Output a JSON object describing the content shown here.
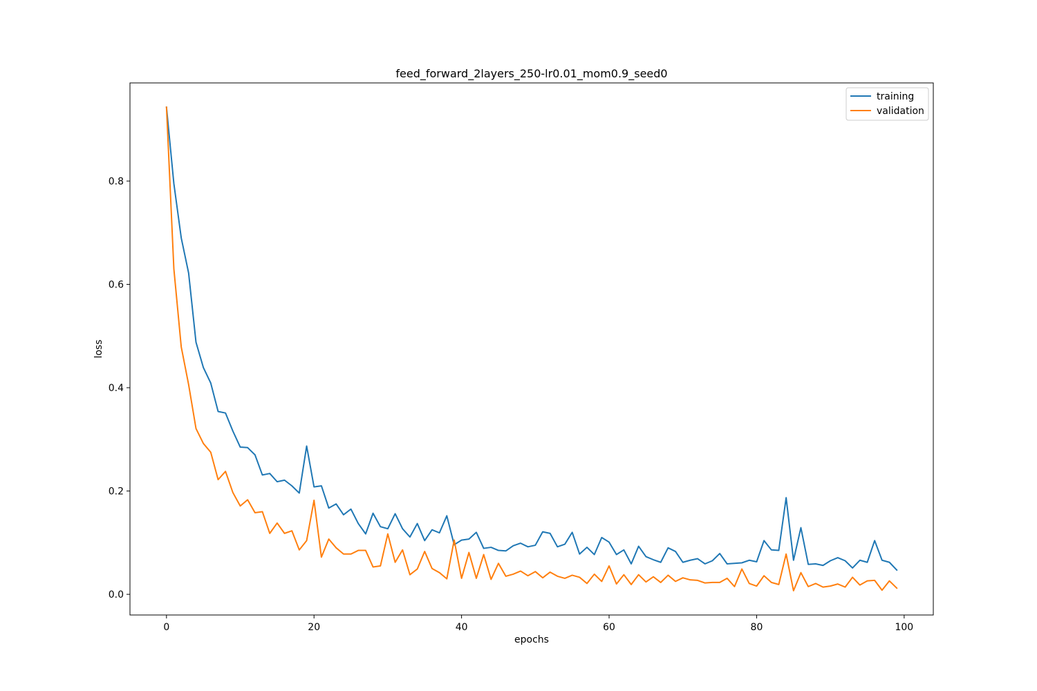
{
  "chart_data": {
    "type": "line",
    "title": "feed_forward_2layers_250-lr0.01_mom0.9_seed0",
    "xlabel": "epochs",
    "ylabel": "loss",
    "xlim": [
      -4.95,
      103.95
    ],
    "ylim": [
      -0.04,
      0.99
    ],
    "x_ticks": [
      0,
      20,
      40,
      60,
      80,
      100
    ],
    "y_ticks": [
      0.0,
      0.2,
      0.4,
      0.6,
      0.8
    ],
    "x_tick_labels": [
      "0",
      "20",
      "40",
      "60",
      "80",
      "100"
    ],
    "y_tick_labels": [
      "0.0",
      "0.2",
      "0.4",
      "0.6",
      "0.8"
    ],
    "grid": false,
    "legend_position": "top-right",
    "x": [
      0,
      1,
      2,
      3,
      4,
      5,
      6,
      7,
      8,
      9,
      10,
      11,
      12,
      13,
      14,
      15,
      16,
      17,
      18,
      19,
      20,
      21,
      22,
      23,
      24,
      25,
      26,
      27,
      28,
      29,
      30,
      31,
      32,
      33,
      34,
      35,
      36,
      37,
      38,
      39,
      40,
      41,
      42,
      43,
      44,
      45,
      46,
      47,
      48,
      49,
      50,
      51,
      52,
      53,
      54,
      55,
      56,
      57,
      58,
      59,
      60,
      61,
      62,
      63,
      64,
      65,
      66,
      67,
      68,
      69,
      70,
      71,
      72,
      73,
      74,
      75,
      76,
      77,
      78,
      79,
      80,
      81,
      82,
      83,
      84,
      85,
      86,
      87,
      88,
      89,
      90,
      91,
      92,
      93,
      94,
      95,
      96,
      97,
      98,
      99
    ],
    "series": [
      {
        "name": "training",
        "color": "#1f77b4",
        "values": [
          0.943,
          0.795,
          0.69,
          0.622,
          0.488,
          0.439,
          0.409,
          0.354,
          0.351,
          0.316,
          0.285,
          0.284,
          0.27,
          0.231,
          0.234,
          0.218,
          0.221,
          0.21,
          0.196,
          0.287,
          0.208,
          0.21,
          0.167,
          0.175,
          0.154,
          0.165,
          0.137,
          0.117,
          0.157,
          0.131,
          0.127,
          0.156,
          0.127,
          0.111,
          0.137,
          0.104,
          0.125,
          0.119,
          0.152,
          0.096,
          0.105,
          0.107,
          0.12,
          0.089,
          0.091,
          0.085,
          0.084,
          0.094,
          0.099,
          0.092,
          0.095,
          0.121,
          0.118,
          0.092,
          0.097,
          0.12,
          0.078,
          0.091,
          0.077,
          0.11,
          0.101,
          0.077,
          0.086,
          0.059,
          0.093,
          0.073,
          0.067,
          0.062,
          0.09,
          0.083,
          0.062,
          0.066,
          0.069,
          0.059,
          0.065,
          0.079,
          0.059,
          0.06,
          0.061,
          0.066,
          0.063,
          0.104,
          0.086,
          0.085,
          0.187,
          0.066,
          0.129,
          0.058,
          0.059,
          0.056,
          0.065,
          0.071,
          0.065,
          0.051,
          0.066,
          0.062,
          0.104,
          0.066,
          0.062,
          0.047
        ]
      },
      {
        "name": "validation",
        "color": "#ff7f0e",
        "values": [
          0.943,
          0.63,
          0.479,
          0.406,
          0.321,
          0.292,
          0.275,
          0.222,
          0.238,
          0.197,
          0.171,
          0.183,
          0.158,
          0.16,
          0.118,
          0.138,
          0.118,
          0.123,
          0.086,
          0.104,
          0.182,
          0.072,
          0.107,
          0.09,
          0.078,
          0.078,
          0.085,
          0.085,
          0.053,
          0.055,
          0.117,
          0.062,
          0.086,
          0.038,
          0.049,
          0.083,
          0.05,
          0.042,
          0.03,
          0.105,
          0.031,
          0.081,
          0.031,
          0.077,
          0.029,
          0.06,
          0.035,
          0.039,
          0.045,
          0.036,
          0.044,
          0.032,
          0.043,
          0.035,
          0.031,
          0.037,
          0.033,
          0.021,
          0.039,
          0.025,
          0.055,
          0.02,
          0.038,
          0.019,
          0.038,
          0.024,
          0.034,
          0.023,
          0.037,
          0.025,
          0.032,
          0.028,
          0.027,
          0.022,
          0.023,
          0.023,
          0.031,
          0.015,
          0.049,
          0.021,
          0.016,
          0.036,
          0.023,
          0.019,
          0.078,
          0.007,
          0.042,
          0.015,
          0.021,
          0.014,
          0.016,
          0.02,
          0.014,
          0.033,
          0.018,
          0.026,
          0.027,
          0.008,
          0.026,
          0.012
        ]
      }
    ]
  }
}
